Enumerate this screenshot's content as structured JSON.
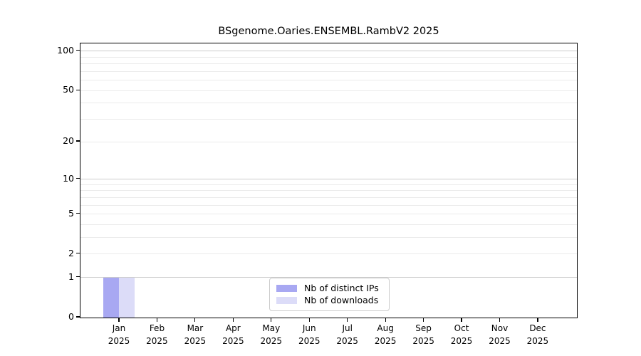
{
  "figure": {
    "title": "BSgenome.Oaries.ENSEMBL.RambV2 2025"
  },
  "chart_data": {
    "type": "bar",
    "title": "BSgenome.Oaries.ENSEMBL.RambV2 2025",
    "categories": [
      "Jan 2025",
      "Feb 2025",
      "Mar 2025",
      "Apr 2025",
      "May 2025",
      "Jun 2025",
      "Jul 2025",
      "Aug 2025",
      "Sep 2025",
      "Oct 2025",
      "Nov 2025",
      "Dec 2025"
    ],
    "x": {
      "months": [
        "Jan",
        "Feb",
        "Mar",
        "Apr",
        "May",
        "Jun",
        "Jul",
        "Aug",
        "Sep",
        "Oct",
        "Nov",
        "Dec"
      ],
      "year": "2025"
    },
    "series": [
      {
        "name": "Nb of distinct IPs",
        "color": "#a8a8f2",
        "values": [
          1,
          0,
          0,
          0,
          0,
          0,
          0,
          0,
          0,
          0,
          0,
          0
        ]
      },
      {
        "name": "Nb of downloads",
        "color": "#dcdcf8",
        "values": [
          1,
          0,
          0,
          0,
          0,
          0,
          0,
          0,
          0,
          0,
          0,
          0
        ]
      }
    ],
    "y_axis": {
      "scale": "log1p",
      "tick_values": [
        0,
        1,
        2,
        5,
        10,
        20,
        50,
        100
      ],
      "major_gridlines": [
        1,
        10,
        100
      ],
      "minor_gridlines": [
        2,
        3,
        4,
        5,
        6,
        7,
        8,
        9,
        20,
        30,
        40,
        50,
        60,
        70,
        80,
        90
      ],
      "ylim": [
        0,
        114
      ]
    },
    "legend": {
      "position": "lower center",
      "items": [
        "Nb of distinct IPs",
        "Nb of downloads"
      ]
    },
    "grid": true
  },
  "colors": {
    "distinct_ips_bar": "#a8a8f2",
    "downloads_bar": "#dcdcf8",
    "major_grid": "#cccccc",
    "minor_grid": "#ebebeb",
    "spine": "#000000",
    "legend_border": "#cccccc",
    "background": "#ffffff"
  }
}
